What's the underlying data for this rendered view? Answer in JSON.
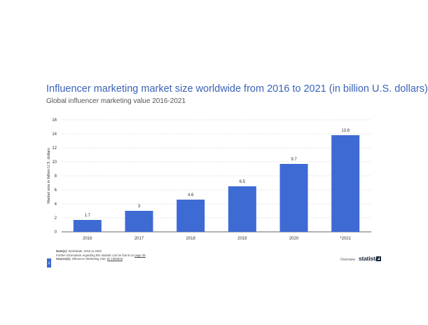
{
  "chart_data": {
    "type": "bar",
    "title": "Influencer marketing market size worldwide from 2016 to 2021 (in billion U.S. dollars)",
    "subtitle": "Global influencer marketing value 2016-2021",
    "ylabel": "Market size in billion U.S. dollars",
    "categories": [
      "2016",
      "2017",
      "2018",
      "2019",
      "2020",
      "*2021"
    ],
    "values": [
      1.7,
      3,
      4.6,
      6.5,
      9.7,
      13.8
    ],
    "value_labels": [
      "1.7",
      "3",
      "4.6",
      "6.5",
      "9.7",
      "13.8"
    ],
    "ylim": [
      0,
      16
    ],
    "yticks": [
      0,
      2,
      4,
      6,
      8,
      10,
      12,
      14,
      16
    ],
    "grid": true,
    "bar_color": "#3e6ad4"
  },
  "footer": {
    "note_label": "Note(s):",
    "note_text": "Worldwide; 2016 to 2020",
    "further_info": "Further information regarding this statistic can be found on",
    "further_link": "page 35",
    "source_label": "Source(s):",
    "source_text": "Influencer Marketing Hub;",
    "source_id": "ID 1092819",
    "page_number": "2",
    "overview": "Overview",
    "logo": "statista"
  }
}
